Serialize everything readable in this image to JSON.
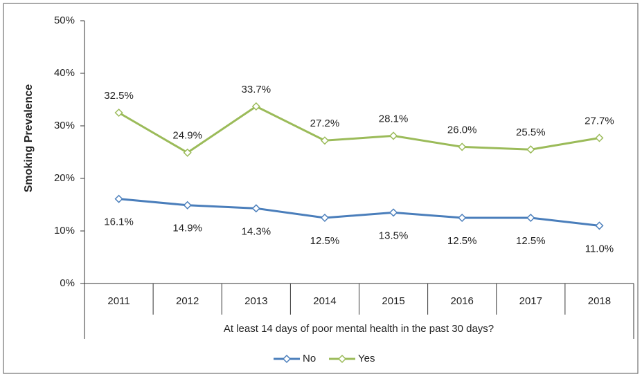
{
  "chart_data": {
    "type": "line",
    "y_label": "Smoking Prevalence",
    "x_label": "At least 14 days of poor mental health in the past 30 days?",
    "categories": [
      "2011",
      "2012",
      "2013",
      "2014",
      "2015",
      "2016",
      "2017",
      "2018"
    ],
    "series": [
      {
        "name": "No",
        "color": "#4a7ebb",
        "values": [
          16.1,
          14.9,
          14.3,
          12.5,
          13.5,
          12.5,
          12.5,
          11.0
        ],
        "value_labels": [
          "16.1%",
          "14.9%",
          "14.3%",
          "12.5%",
          "13.5%",
          "12.5%",
          "12.5%",
          "11.0%"
        ]
      },
      {
        "name": "Yes",
        "color": "#9bbb59",
        "values": [
          32.5,
          24.9,
          33.7,
          27.2,
          28.1,
          26.0,
          25.5,
          27.7
        ],
        "value_labels": [
          "32.5%",
          "24.9%",
          "33.7%",
          "27.2%",
          "28.1%",
          "26.0%",
          "25.5%",
          "27.7%"
        ]
      }
    ],
    "ylim": [
      0,
      50
    ],
    "yticks": [
      {
        "value": 0,
        "label": "0%"
      },
      {
        "value": 10,
        "label": "10%"
      },
      {
        "value": 20,
        "label": "20%"
      },
      {
        "value": 30,
        "label": "30%"
      },
      {
        "value": 40,
        "label": "40%"
      },
      {
        "value": 50,
        "label": "50%"
      }
    ],
    "grid": false,
    "legend": "bottom"
  }
}
